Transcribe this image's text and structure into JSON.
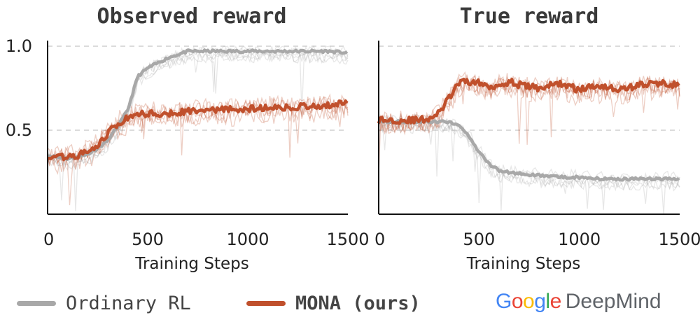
{
  "colors": {
    "rl": "#a8a8a8",
    "mona": "#c0502c",
    "axis": "#111111",
    "grid": "#cfcfcf",
    "text": "#222222"
  },
  "chart_data": [
    {
      "type": "line",
      "title": "Observed reward",
      "xlabel": "Training Steps",
      "ylabel": "",
      "xlim": [
        0,
        1500
      ],
      "ylim": [
        0,
        1.0
      ],
      "x_ticks": [
        0,
        500,
        1000,
        1500
      ],
      "y_ticks": [
        0.5,
        1.0
      ],
      "y_tick_labels": [
        "0.5",
        "1.0"
      ],
      "grid": "horizontal dashed",
      "series": [
        {
          "name": "Ordinary RL",
          "x": [
            0,
            50,
            100,
            150,
            200,
            250,
            300,
            350,
            400,
            450,
            500,
            550,
            600,
            650,
            700,
            800,
            900,
            1000,
            1100,
            1200,
            1300,
            1400,
            1500
          ],
          "values": [
            0.35,
            0.34,
            0.33,
            0.34,
            0.36,
            0.39,
            0.44,
            0.52,
            0.62,
            0.82,
            0.87,
            0.9,
            0.93,
            0.95,
            0.97,
            0.97,
            0.97,
            0.97,
            0.97,
            0.97,
            0.97,
            0.97,
            0.96
          ]
        },
        {
          "name": "MONA (ours)",
          "x": [
            0,
            50,
            100,
            150,
            200,
            250,
            300,
            350,
            400,
            450,
            500,
            550,
            600,
            650,
            700,
            800,
            900,
            1000,
            1100,
            1200,
            1300,
            1400,
            1500
          ],
          "values": [
            0.35,
            0.34,
            0.34,
            0.35,
            0.37,
            0.41,
            0.48,
            0.54,
            0.57,
            0.59,
            0.6,
            0.6,
            0.6,
            0.61,
            0.61,
            0.62,
            0.62,
            0.63,
            0.63,
            0.64,
            0.64,
            0.65,
            0.66
          ]
        }
      ]
    },
    {
      "type": "line",
      "title": "True reward",
      "xlabel": "Training Steps",
      "ylabel": "",
      "xlim": [
        0,
        1500
      ],
      "ylim": [
        0,
        1.0
      ],
      "x_ticks": [
        0,
        500,
        1000,
        1500
      ],
      "y_ticks": [
        0.5,
        1.0
      ],
      "grid": "horizontal dashed",
      "series": [
        {
          "name": "Ordinary RL",
          "x": [
            0,
            50,
            100,
            150,
            200,
            250,
            300,
            350,
            400,
            450,
            500,
            550,
            600,
            650,
            700,
            800,
            900,
            1000,
            1100,
            1200,
            1300,
            1400,
            1500
          ],
          "values": [
            0.56,
            0.55,
            0.55,
            0.55,
            0.55,
            0.55,
            0.55,
            0.55,
            0.53,
            0.46,
            0.37,
            0.3,
            0.26,
            0.25,
            0.24,
            0.23,
            0.22,
            0.22,
            0.21,
            0.21,
            0.21,
            0.21,
            0.21
          ]
        },
        {
          "name": "MONA (ours)",
          "x": [
            0,
            50,
            100,
            150,
            200,
            250,
            300,
            350,
            400,
            450,
            500,
            550,
            600,
            650,
            700,
            800,
            900,
            1000,
            1100,
            1200,
            1300,
            1400,
            1500
          ],
          "values": [
            0.56,
            0.56,
            0.56,
            0.56,
            0.56,
            0.57,
            0.6,
            0.69,
            0.78,
            0.79,
            0.78,
            0.76,
            0.77,
            0.79,
            0.77,
            0.75,
            0.78,
            0.74,
            0.77,
            0.74,
            0.77,
            0.78,
            0.77
          ]
        }
      ]
    }
  ],
  "legend": {
    "rl_label": "Ordinary RL",
    "mona_label": "MONA (ours)"
  },
  "brand": {
    "google": "Google",
    "deepmind": "DeepMind"
  }
}
